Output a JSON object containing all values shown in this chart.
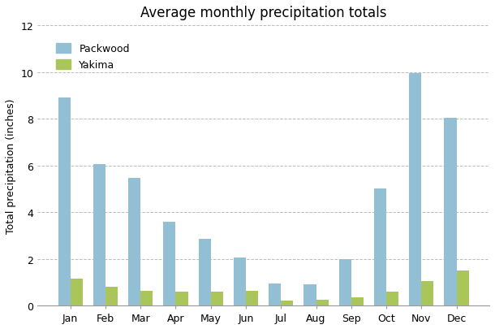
{
  "title": "Average monthly precipitation totals",
  "ylabel": "Total precipitation (inches)",
  "months": [
    "Jan",
    "Feb",
    "Mar",
    "Apr",
    "May",
    "Jun",
    "Jul",
    "Aug",
    "Sep",
    "Oct",
    "Nov",
    "Dec"
  ],
  "packwood": [
    8.9,
    6.05,
    5.45,
    3.6,
    2.85,
    2.05,
    0.95,
    0.9,
    2.0,
    5.0,
    9.95,
    8.05
  ],
  "yakima": [
    1.15,
    0.8,
    0.62,
    0.58,
    0.6,
    0.62,
    0.2,
    0.23,
    0.35,
    0.58,
    1.05,
    1.5
  ],
  "packwood_color": "#92bfd4",
  "yakima_color": "#aac55a",
  "ylim": [
    0,
    12
  ],
  "yticks": [
    0,
    2,
    4,
    6,
    8,
    10,
    12
  ],
  "background_color": "#ffffff",
  "grid_color": "#bbbbbb",
  "title_fontsize": 12,
  "axis_label_fontsize": 9,
  "tick_fontsize": 9,
  "legend_fontsize": 9,
  "bar_width": 0.35
}
